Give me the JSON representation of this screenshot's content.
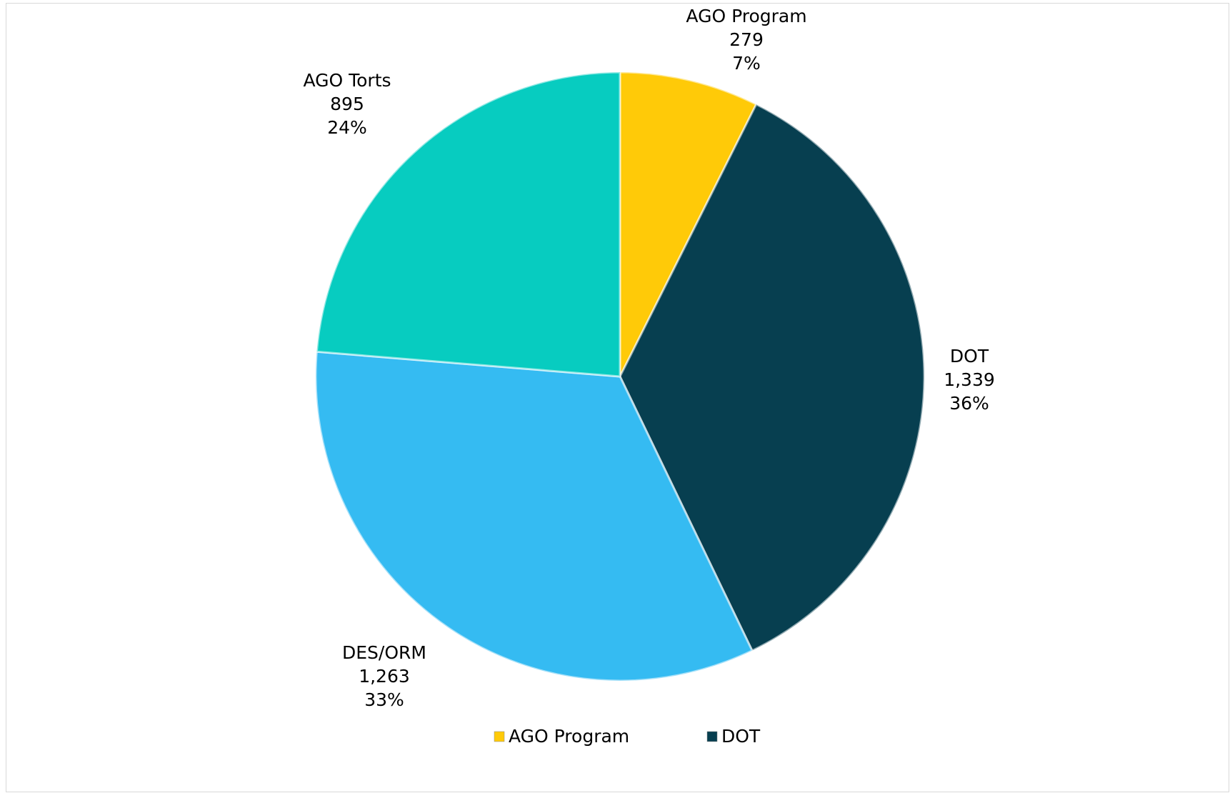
{
  "chart_data": {
    "type": "pie",
    "categories": [
      "AGO Program",
      "DOT",
      "DES/ORM",
      "AGO Torts"
    ],
    "values": [
      279,
      1339,
      1263,
      895
    ],
    "value_labels": [
      "279",
      "1,339",
      "1,263",
      "895"
    ],
    "percent_labels": [
      "7%",
      "36%",
      "33%",
      "24%"
    ],
    "colors": [
      "#ffca08",
      "#073f50",
      "#35bbf2",
      "#07ccc0"
    ],
    "legend_items": [
      "AGO Program",
      "DOT"
    ],
    "legend": "bottom"
  }
}
